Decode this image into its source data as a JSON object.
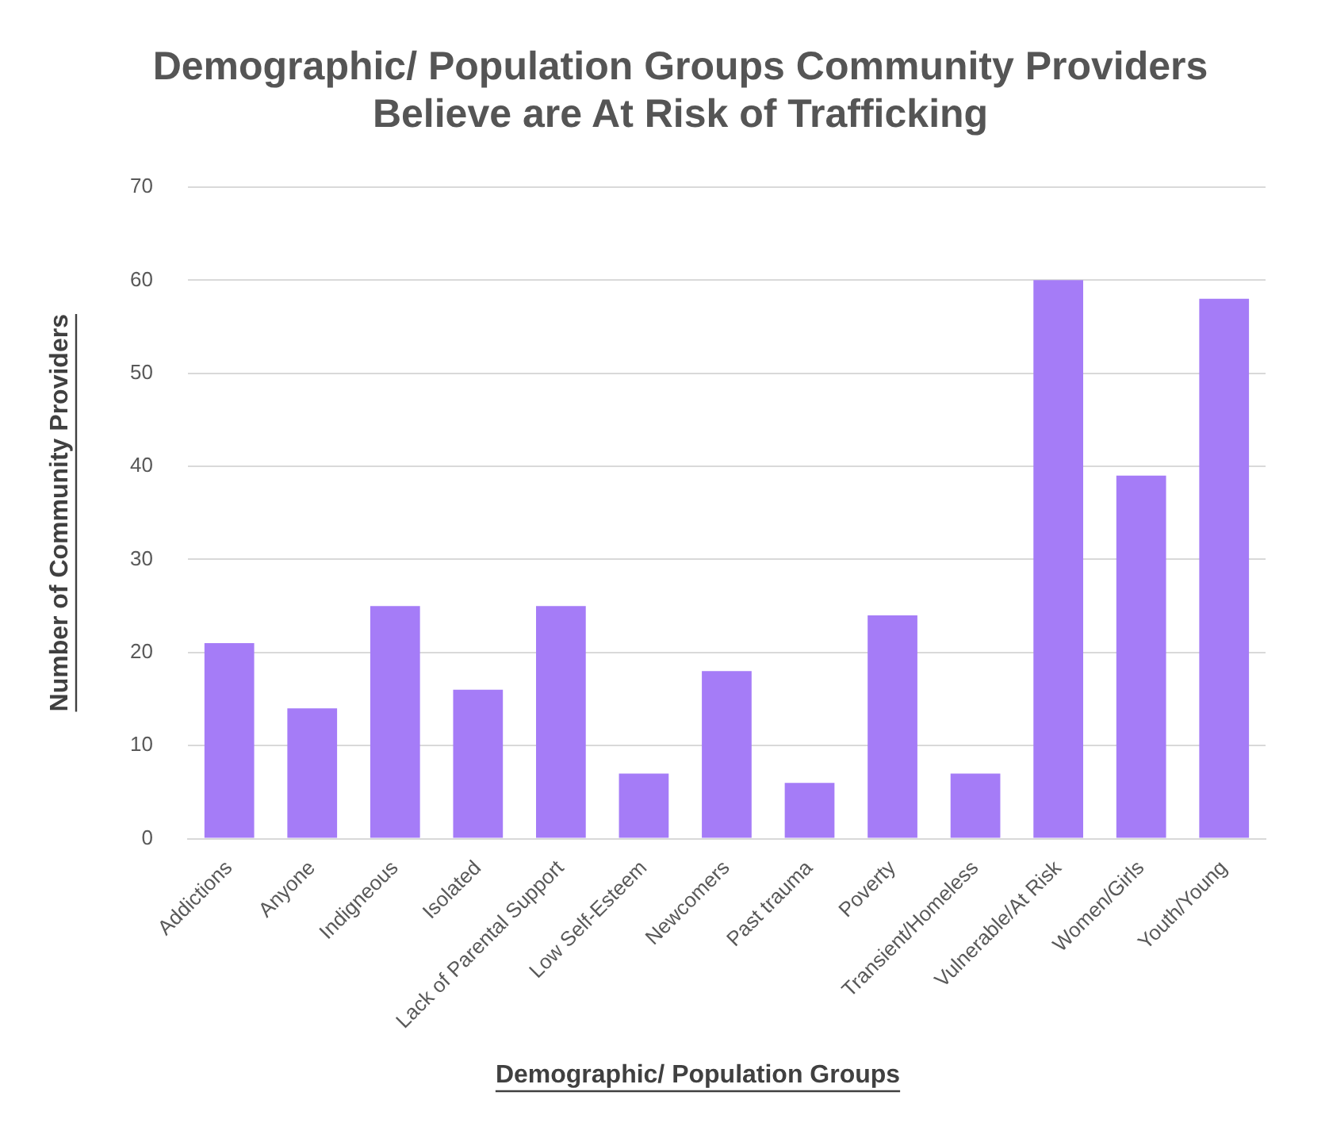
{
  "chart_data": {
    "type": "bar",
    "title": [
      "Demographic/ Population Groups Community Providers",
      "Believe are At Risk of Trafficking"
    ],
    "xlabel": "Demographic/ Population Groups",
    "ylabel": "Number of Community Providers",
    "categories": [
      "Addictions",
      "Anyone",
      "Indigneous",
      "Isolated",
      "Lack of Parental Support",
      "Low Self-Esteem",
      "Newcomers",
      "Past trauma",
      "Poverty",
      "Transient/Homeless",
      "Vulnerable/At Risk",
      "Women/Girls",
      "Youth/Young"
    ],
    "values": [
      21,
      14,
      25,
      16,
      25,
      7,
      18,
      6,
      24,
      7,
      60,
      39,
      58
    ],
    "color": "#a57cf7",
    "ylim": [
      0,
      70
    ],
    "yticks": [
      0,
      10,
      20,
      30,
      40,
      50,
      60,
      70
    ],
    "grid": "y"
  }
}
